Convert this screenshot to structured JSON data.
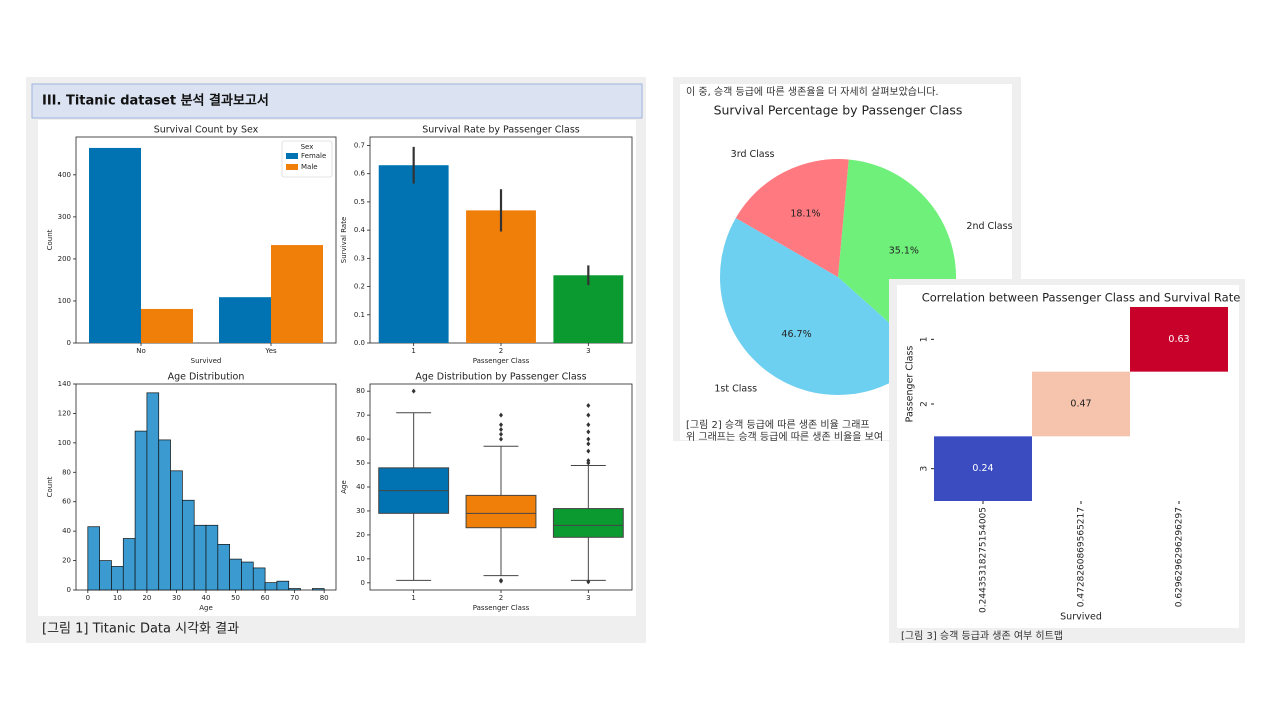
{
  "report": {
    "header": "III. Titanic dataset 분석 결과보고서",
    "caption": "[그림 1]  Titanic Data 시각화 결과"
  },
  "pie_page": {
    "intro": "이 중, 승객 등급에 따른 생존율을 더 자세히 살펴보았습니다.",
    "caption": "[그림 2] 승객 등급에 따른 생존 비율 그래프",
    "note": "위 그래프는 승객 등급에 따른 생존 비율을 보여"
  },
  "heatmap_page": {
    "caption": "[그림 3] 승객 등급과 생존 여부 히트맵"
  },
  "chart_data": [
    {
      "type": "bar",
      "title": "Survival Count by Sex",
      "xlabel": "Survived",
      "ylabel": "Count",
      "categories": [
        "No",
        "Yes"
      ],
      "series": [
        {
          "name": "Female",
          "color": "#0173b2",
          "values": [
            464,
            109
          ]
        },
        {
          "name": "Male",
          "color": "#f07f0a",
          "values": [
            81,
            233
          ]
        }
      ],
      "legend_title": "Sex",
      "legend": "upper right",
      "ylim": [
        0,
        490
      ],
      "yticks": [
        0,
        100,
        200,
        300,
        400
      ]
    },
    {
      "type": "bar",
      "title": "Survival Rate by Passenger Class",
      "xlabel": "Passenger Class",
      "ylabel": "Survival Rate",
      "categories": [
        "1",
        "2",
        "3"
      ],
      "values": [
        0.63,
        0.47,
        0.24
      ],
      "errors": [
        0.065,
        0.075,
        0.035
      ],
      "colors": [
        "#0173b2",
        "#f07f0a",
        "#0b9a30"
      ],
      "ylim": [
        0,
        0.73
      ],
      "yticks": [
        {
          "value": 0,
          "label": "0.0"
        },
        0.1,
        0.2,
        0.3,
        0.4,
        0.5,
        0.6,
        0.7
      ]
    },
    {
      "type": "histogram",
      "title": "Age Distribution",
      "xlabel": "Age",
      "ylabel": "Count",
      "bins": [
        0,
        4,
        8,
        12,
        16,
        20,
        24,
        28,
        32,
        36,
        40,
        44,
        48,
        52,
        56,
        60,
        64,
        68,
        72,
        76,
        80
      ],
      "counts": [
        43,
        20,
        16,
        35,
        108,
        134,
        102,
        81,
        61,
        44,
        44,
        31,
        21,
        19,
        15,
        5,
        6,
        1,
        0,
        1
      ],
      "color": "#3b9ad0",
      "xlim": [
        -4,
        84
      ],
      "xticks": [
        0,
        10,
        20,
        30,
        40,
        50,
        60,
        70,
        80
      ],
      "ylim": [
        0,
        140
      ],
      "yticks": [
        0,
        20,
        40,
        60,
        80,
        100,
        120,
        140
      ]
    },
    {
      "type": "box",
      "title": "Age Distribution by Passenger Class",
      "xlabel": "Passenger Class",
      "ylabel": "Age",
      "categories": [
        "1",
        "2",
        "3"
      ],
      "colors": [
        "#0173b2",
        "#f07f0a",
        "#0b9a30"
      ],
      "boxes": [
        {
          "whisker_low": 1,
          "q1": 29,
          "median": 38.5,
          "q3": 48,
          "whisker_high": 71,
          "outliers": [
            80
          ]
        },
        {
          "whisker_low": 3,
          "q1": 23,
          "median": 29,
          "q3": 36.5,
          "whisker_high": 57,
          "outliers": [
            0.7,
            1,
            60,
            62,
            64,
            66,
            70
          ]
        },
        {
          "whisker_low": 1,
          "q1": 19,
          "median": 24,
          "q3": 31,
          "whisker_high": 49,
          "outliers": [
            0.4,
            50,
            51,
            55,
            58,
            60,
            63,
            66,
            70,
            74
          ]
        }
      ],
      "ylim": [
        -3,
        83
      ],
      "yticks": [
        0,
        10,
        20,
        30,
        40,
        50,
        60,
        70,
        80
      ]
    },
    {
      "type": "pie",
      "title": "Survival Percentage by Passenger Class",
      "labels": [
        "1st Class",
        "2nd Class",
        "3rd Class"
      ],
      "values": [
        46.7,
        35.1,
        18.1
      ],
      "value_labels": [
        "46.7%",
        "35.1%",
        "18.1%"
      ],
      "colors": [
        "#6ed0f0",
        "#6ef07a",
        "#ff7a80"
      ],
      "startangle": 150
    },
    {
      "type": "heatmap",
      "title": "Correlation between Passenger Class and Survival Rate",
      "xlabel": "Survived",
      "ylabel": "Passenger Class",
      "categories": [
        "0.24435318275154005",
        "0.4728260869565217",
        "0.6296296296296297"
      ],
      "y_categories": [
        "1",
        "2",
        "3"
      ],
      "values": [
        [
          null,
          null,
          0.63
        ],
        [
          null,
          0.47,
          null
        ],
        [
          0.24,
          null,
          null
        ]
      ],
      "colors": [
        [
          null,
          null,
          "#c8012b"
        ],
        [
          null,
          "#f6c4ad",
          null
        ],
        [
          "#3b4cc0",
          null,
          null
        ]
      ]
    }
  ]
}
